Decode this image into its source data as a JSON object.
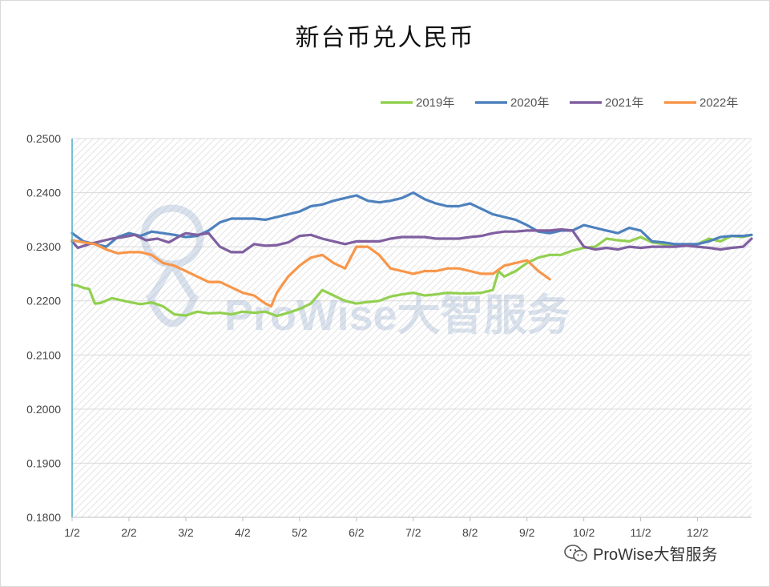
{
  "title": "新台币兑人民币",
  "watermark_text": "ProWise大智服务",
  "footer_watermark": "ProWise大智服务",
  "icons": {
    "footer": "wechat-icon",
    "watermark": "location-pin-icon"
  },
  "colors": {
    "2019": "#92d050",
    "2020": "#4e81bd",
    "2021": "#7f5fa0",
    "2022": "#f7964a",
    "axis": "#4bacc6",
    "grid": "#d9d9d9",
    "hatch": "#e3e3e3"
  },
  "chart_data": {
    "type": "line",
    "title": "新台币兑人民币",
    "xlabel": "",
    "ylabel": "",
    "ylim": [
      0.18,
      0.25
    ],
    "yticks": [
      "0.1800",
      "0.1900",
      "0.2000",
      "0.2100",
      "0.2200",
      "0.2300",
      "0.2400",
      "0.2500"
    ],
    "ytick_values": [
      0.18,
      0.19,
      0.2,
      0.21,
      0.22,
      0.23,
      0.24,
      0.25
    ],
    "xlim": [
      1,
      12.95
    ],
    "xticks": [
      "1/2",
      "2/2",
      "3/2",
      "4/2",
      "5/2",
      "6/2",
      "7/2",
      "8/2",
      "9/2",
      "10/2",
      "11/2",
      "12/2"
    ],
    "xtick_values": [
      1,
      2,
      3,
      4,
      5,
      6,
      7,
      8,
      9,
      10,
      11,
      12
    ],
    "x_unit": "month (1 = 1/2, 2 = 2/2, ...)",
    "grid": true,
    "legend_position": "top-right",
    "series": [
      {
        "name": "2019年",
        "x": [
          1.0,
          1.1,
          1.2,
          1.3,
          1.4,
          1.5,
          1.7,
          2.0,
          2.2,
          2.4,
          2.6,
          2.8,
          3.0,
          3.2,
          3.4,
          3.6,
          3.8,
          4.0,
          4.2,
          4.4,
          4.6,
          4.8,
          5.0,
          5.2,
          5.4,
          5.6,
          5.8,
          6.0,
          6.2,
          6.4,
          6.6,
          6.8,
          7.0,
          7.2,
          7.4,
          7.6,
          7.8,
          8.0,
          8.2,
          8.4,
          8.5,
          8.6,
          8.8,
          9.0,
          9.2,
          9.4,
          9.6,
          9.8,
          10.0,
          10.2,
          10.4,
          10.6,
          10.8,
          11.0,
          11.2,
          11.4,
          11.6,
          11.8,
          12.0,
          12.2,
          12.4,
          12.6,
          12.8,
          12.95
        ],
        "values": [
          0.223,
          0.2228,
          0.2224,
          0.2222,
          0.2195,
          0.2196,
          0.2205,
          0.2198,
          0.2194,
          0.2197,
          0.219,
          0.2175,
          0.2173,
          0.218,
          0.2177,
          0.2178,
          0.2175,
          0.218,
          0.2178,
          0.218,
          0.2172,
          0.2178,
          0.2185,
          0.2195,
          0.222,
          0.221,
          0.22,
          0.2195,
          0.2198,
          0.22,
          0.2208,
          0.2212,
          0.2215,
          0.221,
          0.2212,
          0.2215,
          0.2214,
          0.2214,
          0.2215,
          0.222,
          0.2255,
          0.2245,
          0.2255,
          0.227,
          0.228,
          0.2285,
          0.2285,
          0.2293,
          0.2298,
          0.23,
          0.2315,
          0.2312,
          0.231,
          0.2318,
          0.2308,
          0.2305,
          0.2303,
          0.2303,
          0.2305,
          0.2315,
          0.231,
          0.232,
          0.2318,
          0.2322
        ]
      },
      {
        "name": "2020年",
        "x": [
          1.0,
          1.2,
          1.4,
          1.6,
          1.8,
          2.0,
          2.2,
          2.4,
          2.6,
          2.8,
          3.0,
          3.2,
          3.4,
          3.6,
          3.8,
          4.0,
          4.2,
          4.4,
          4.6,
          4.8,
          5.0,
          5.2,
          5.4,
          5.6,
          5.8,
          6.0,
          6.2,
          6.4,
          6.6,
          6.8,
          7.0,
          7.2,
          7.4,
          7.6,
          7.8,
          8.0,
          8.2,
          8.4,
          8.6,
          8.8,
          9.0,
          9.2,
          9.4,
          9.6,
          9.8,
          10.0,
          10.2,
          10.4,
          10.6,
          10.8,
          11.0,
          11.2,
          11.4,
          11.6,
          11.8,
          12.0,
          12.2,
          12.4,
          12.6,
          12.8,
          12.95
        ],
        "values": [
          0.2325,
          0.231,
          0.2305,
          0.23,
          0.2318,
          0.2325,
          0.232,
          0.2328,
          0.2325,
          0.2322,
          0.2318,
          0.232,
          0.233,
          0.2345,
          0.2352,
          0.2352,
          0.2352,
          0.235,
          0.2355,
          0.236,
          0.2365,
          0.2375,
          0.2378,
          0.2385,
          0.239,
          0.2395,
          0.2385,
          0.2382,
          0.2385,
          0.239,
          0.24,
          0.2388,
          0.238,
          0.2375,
          0.2375,
          0.238,
          0.237,
          0.236,
          0.2355,
          0.235,
          0.234,
          0.2328,
          0.2325,
          0.233,
          0.233,
          0.234,
          0.2335,
          0.233,
          0.2325,
          0.2335,
          0.233,
          0.231,
          0.2308,
          0.2305,
          0.2305,
          0.2305,
          0.231,
          0.2318,
          0.232,
          0.232,
          0.2322
        ]
      },
      {
        "name": "2021年",
        "x": [
          1.0,
          1.1,
          1.3,
          1.5,
          1.7,
          1.9,
          2.1,
          2.3,
          2.5,
          2.7,
          2.9,
          3.0,
          3.2,
          3.4,
          3.6,
          3.8,
          4.0,
          4.2,
          4.4,
          4.6,
          4.8,
          5.0,
          5.2,
          5.4,
          5.6,
          5.8,
          6.0,
          6.2,
          6.4,
          6.6,
          6.8,
          7.0,
          7.2,
          7.4,
          7.6,
          7.8,
          8.0,
          8.2,
          8.4,
          8.6,
          8.8,
          9.0,
          9.2,
          9.4,
          9.6,
          9.8,
          10.0,
          10.2,
          10.4,
          10.6,
          10.8,
          11.0,
          11.2,
          11.4,
          11.6,
          11.8,
          12.0,
          12.2,
          12.4,
          12.6,
          12.8,
          12.95
        ],
        "values": [
          0.231,
          0.2298,
          0.2305,
          0.231,
          0.2315,
          0.2318,
          0.2322,
          0.2312,
          0.2315,
          0.2308,
          0.232,
          0.2325,
          0.2322,
          0.2325,
          0.23,
          0.229,
          0.229,
          0.2305,
          0.2302,
          0.2303,
          0.2308,
          0.232,
          0.2322,
          0.2315,
          0.231,
          0.2305,
          0.231,
          0.231,
          0.231,
          0.2315,
          0.2318,
          0.2318,
          0.2318,
          0.2315,
          0.2315,
          0.2315,
          0.2318,
          0.232,
          0.2325,
          0.2328,
          0.2328,
          0.233,
          0.233,
          0.233,
          0.2332,
          0.233,
          0.23,
          0.2295,
          0.2298,
          0.2295,
          0.23,
          0.2298,
          0.23,
          0.23,
          0.23,
          0.2302,
          0.23,
          0.2298,
          0.2295,
          0.2298,
          0.23,
          0.2315
        ]
      },
      {
        "name": "2022年",
        "x": [
          1.0,
          1.2,
          1.4,
          1.6,
          1.8,
          2.0,
          2.2,
          2.4,
          2.6,
          2.8,
          3.0,
          3.2,
          3.4,
          3.6,
          3.8,
          4.0,
          4.2,
          4.4,
          4.5,
          4.6,
          4.8,
          5.0,
          5.2,
          5.4,
          5.6,
          5.8,
          6.0,
          6.2,
          6.4,
          6.6,
          6.8,
          7.0,
          7.2,
          7.4,
          7.6,
          7.8,
          8.0,
          8.2,
          8.4,
          8.6,
          8.8,
          9.0,
          9.2,
          9.4
        ],
        "values": [
          0.2312,
          0.2308,
          0.2305,
          0.2295,
          0.2288,
          0.229,
          0.229,
          0.2285,
          0.227,
          0.2265,
          0.2255,
          0.2245,
          0.2235,
          0.2235,
          0.2225,
          0.2215,
          0.221,
          0.2195,
          0.219,
          0.2215,
          0.2245,
          0.2265,
          0.228,
          0.2285,
          0.227,
          0.226,
          0.23,
          0.23,
          0.2285,
          0.226,
          0.2255,
          0.225,
          0.2255,
          0.2255,
          0.226,
          0.226,
          0.2255,
          0.225,
          0.225,
          0.2265,
          0.227,
          0.2275,
          0.2255,
          0.224
        ]
      }
    ]
  }
}
